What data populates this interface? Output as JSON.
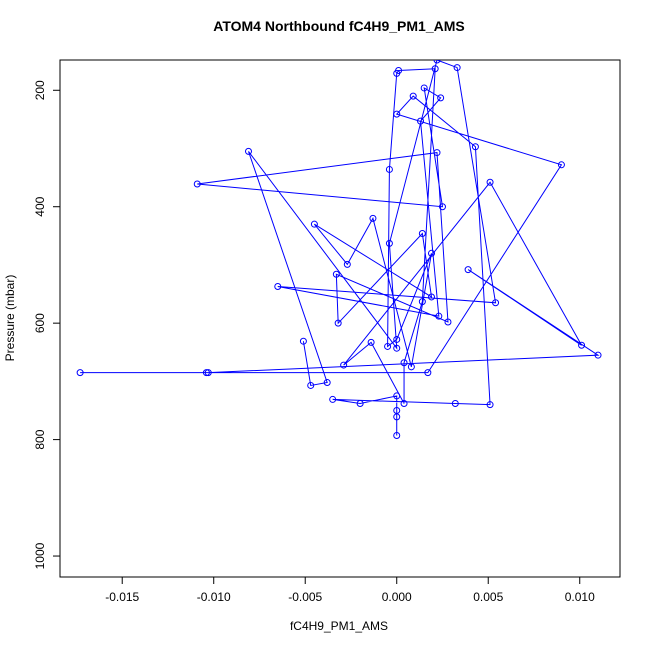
{
  "chart_data": {
    "type": "line",
    "title": "ATOM4 Northbound fC4H9_PM1_AMS",
    "x_label": "fC4H9_PM1_AMS",
    "y_label": "Pressure (mbar)",
    "xlim": [
      -0.0184,
      0.0122
    ],
    "ylim": [
      1036,
      148
    ],
    "xticks": [
      -0.015,
      {
        "value": -0.01,
        "label": "-0.010"
      },
      -0.005,
      {
        "value": 0,
        "label": "0.000"
      },
      0.005,
      {
        "value": 0.01,
        "label": "0.010"
      }
    ],
    "yticks": [
      200,
      400,
      600,
      800,
      1000
    ],
    "series": [
      {
        "color": "#0000ff",
        "x": [
          0.0,
          0.0,
          0.0,
          0.0,
          -0.002,
          -0.0035,
          0.0032,
          0.0051,
          0.0043,
          0.0009,
          0.0,
          0.009,
          0.0017,
          -0.0173,
          -0.0104,
          -0.0103,
          0.011,
          0.0039,
          0.0101,
          0.0051,
          -0.0029,
          -0.0014,
          0.0004,
          0.0004,
          0.0014,
          0.0021,
          0.0001,
          0.0,
          -0.0004,
          -0.0005,
          0.0,
          0.0019,
          0.0008,
          -0.0013,
          -0.0027,
          -0.0045,
          0.0019,
          0.0014,
          -0.0032,
          -0.0033,
          0.0028,
          0.0022,
          -0.0109,
          0.0025,
          0.0015,
          0.0024,
          0.0013,
          0.0023,
          -0.0065,
          0.0054,
          0.0033,
          0.0022,
          -0.0004,
          0.0,
          -0.0081,
          -0.0038,
          -0.0047,
          -0.0051
        ],
        "values": [
          793,
          761,
          750,
          725,
          738,
          731,
          738,
          740,
          297,
          210,
          241,
          328,
          685,
          685,
          685,
          685,
          655,
          508,
          638,
          358,
          672,
          633,
          738,
          668,
          563,
          163,
          166,
          171,
          336,
          640,
          628,
          480,
          675,
          420,
          499,
          430,
          555,
          446,
          600,
          516,
          598,
          307,
          361,
          400,
          196,
          213,
          253,
          588,
          537,
          565,
          161,
          148,
          463,
          643,
          305,
          702,
          707,
          631
        ]
      }
    ]
  }
}
